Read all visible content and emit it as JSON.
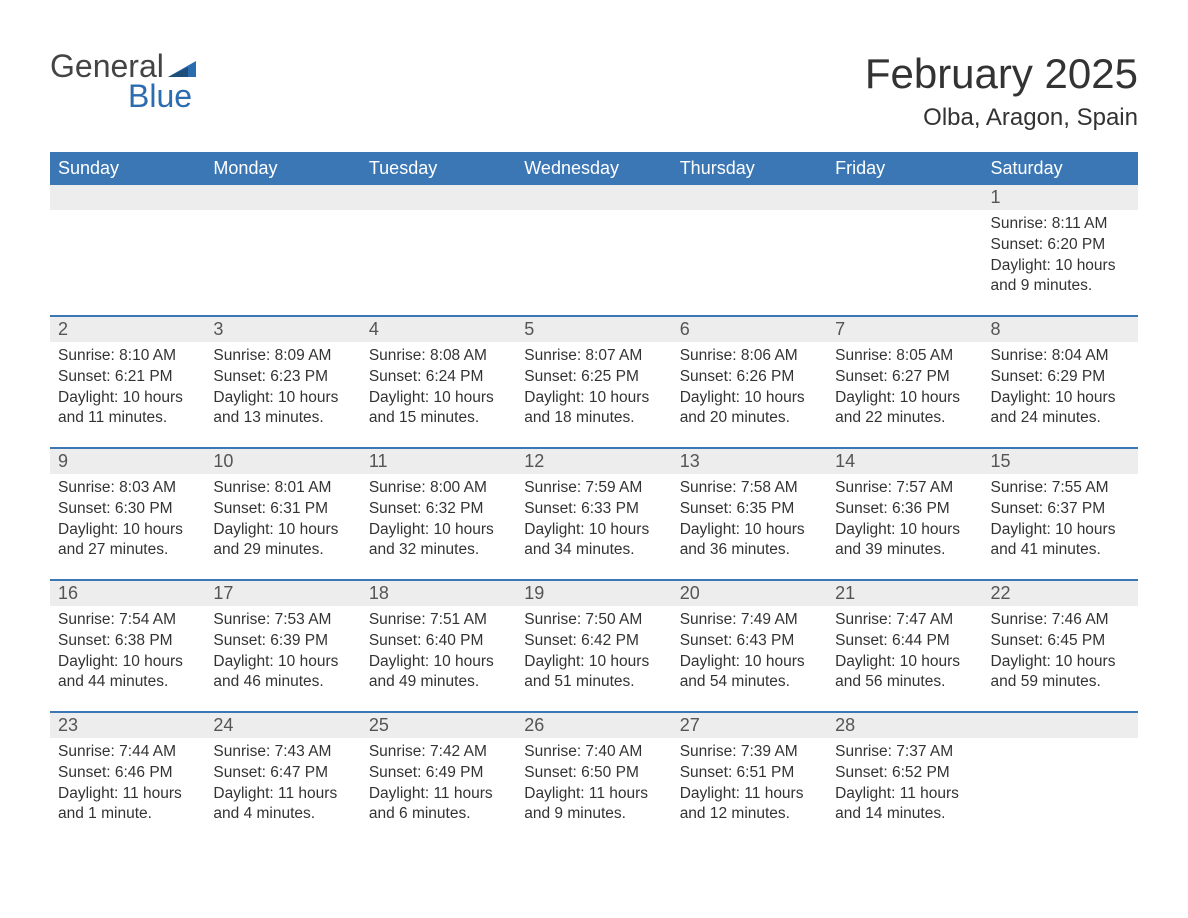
{
  "brand": {
    "top": "General",
    "bottom": "Blue",
    "flag_color": "#2b6cb0"
  },
  "title": "February 2025",
  "location": "Olba, Aragon, Spain",
  "colors": {
    "header_bg": "#3b77b5",
    "header_text": "#ffffff",
    "daynum_bg": "#ededed",
    "text": "#333333",
    "rule": "#3b77b5"
  },
  "day_headers": [
    "Sunday",
    "Monday",
    "Tuesday",
    "Wednesday",
    "Thursday",
    "Friday",
    "Saturday"
  ],
  "weeks": [
    [
      null,
      null,
      null,
      null,
      null,
      null,
      {
        "n": "1",
        "sunrise": "8:11 AM",
        "sunset": "6:20 PM",
        "daylight": "10 hours and 9 minutes."
      }
    ],
    [
      {
        "n": "2",
        "sunrise": "8:10 AM",
        "sunset": "6:21 PM",
        "daylight": "10 hours and 11 minutes."
      },
      {
        "n": "3",
        "sunrise": "8:09 AM",
        "sunset": "6:23 PM",
        "daylight": "10 hours and 13 minutes."
      },
      {
        "n": "4",
        "sunrise": "8:08 AM",
        "sunset": "6:24 PM",
        "daylight": "10 hours and 15 minutes."
      },
      {
        "n": "5",
        "sunrise": "8:07 AM",
        "sunset": "6:25 PM",
        "daylight": "10 hours and 18 minutes."
      },
      {
        "n": "6",
        "sunrise": "8:06 AM",
        "sunset": "6:26 PM",
        "daylight": "10 hours and 20 minutes."
      },
      {
        "n": "7",
        "sunrise": "8:05 AM",
        "sunset": "6:27 PM",
        "daylight": "10 hours and 22 minutes."
      },
      {
        "n": "8",
        "sunrise": "8:04 AM",
        "sunset": "6:29 PM",
        "daylight": "10 hours and 24 minutes."
      }
    ],
    [
      {
        "n": "9",
        "sunrise": "8:03 AM",
        "sunset": "6:30 PM",
        "daylight": "10 hours and 27 minutes."
      },
      {
        "n": "10",
        "sunrise": "8:01 AM",
        "sunset": "6:31 PM",
        "daylight": "10 hours and 29 minutes."
      },
      {
        "n": "11",
        "sunrise": "8:00 AM",
        "sunset": "6:32 PM",
        "daylight": "10 hours and 32 minutes."
      },
      {
        "n": "12",
        "sunrise": "7:59 AM",
        "sunset": "6:33 PM",
        "daylight": "10 hours and 34 minutes."
      },
      {
        "n": "13",
        "sunrise": "7:58 AM",
        "sunset": "6:35 PM",
        "daylight": "10 hours and 36 minutes."
      },
      {
        "n": "14",
        "sunrise": "7:57 AM",
        "sunset": "6:36 PM",
        "daylight": "10 hours and 39 minutes."
      },
      {
        "n": "15",
        "sunrise": "7:55 AM",
        "sunset": "6:37 PM",
        "daylight": "10 hours and 41 minutes."
      }
    ],
    [
      {
        "n": "16",
        "sunrise": "7:54 AM",
        "sunset": "6:38 PM",
        "daylight": "10 hours and 44 minutes."
      },
      {
        "n": "17",
        "sunrise": "7:53 AM",
        "sunset": "6:39 PM",
        "daylight": "10 hours and 46 minutes."
      },
      {
        "n": "18",
        "sunrise": "7:51 AM",
        "sunset": "6:40 PM",
        "daylight": "10 hours and 49 minutes."
      },
      {
        "n": "19",
        "sunrise": "7:50 AM",
        "sunset": "6:42 PM",
        "daylight": "10 hours and 51 minutes."
      },
      {
        "n": "20",
        "sunrise": "7:49 AM",
        "sunset": "6:43 PM",
        "daylight": "10 hours and 54 minutes."
      },
      {
        "n": "21",
        "sunrise": "7:47 AM",
        "sunset": "6:44 PM",
        "daylight": "10 hours and 56 minutes."
      },
      {
        "n": "22",
        "sunrise": "7:46 AM",
        "sunset": "6:45 PM",
        "daylight": "10 hours and 59 minutes."
      }
    ],
    [
      {
        "n": "23",
        "sunrise": "7:44 AM",
        "sunset": "6:46 PM",
        "daylight": "11 hours and 1 minute."
      },
      {
        "n": "24",
        "sunrise": "7:43 AM",
        "sunset": "6:47 PM",
        "daylight": "11 hours and 4 minutes."
      },
      {
        "n": "25",
        "sunrise": "7:42 AM",
        "sunset": "6:49 PM",
        "daylight": "11 hours and 6 minutes."
      },
      {
        "n": "26",
        "sunrise": "7:40 AM",
        "sunset": "6:50 PM",
        "daylight": "11 hours and 9 minutes."
      },
      {
        "n": "27",
        "sunrise": "7:39 AM",
        "sunset": "6:51 PM",
        "daylight": "11 hours and 12 minutes."
      },
      {
        "n": "28",
        "sunrise": "7:37 AM",
        "sunset": "6:52 PM",
        "daylight": "11 hours and 14 minutes."
      },
      null
    ]
  ],
  "labels": {
    "sunrise": "Sunrise: ",
    "sunset": "Sunset: ",
    "daylight": "Daylight: "
  }
}
